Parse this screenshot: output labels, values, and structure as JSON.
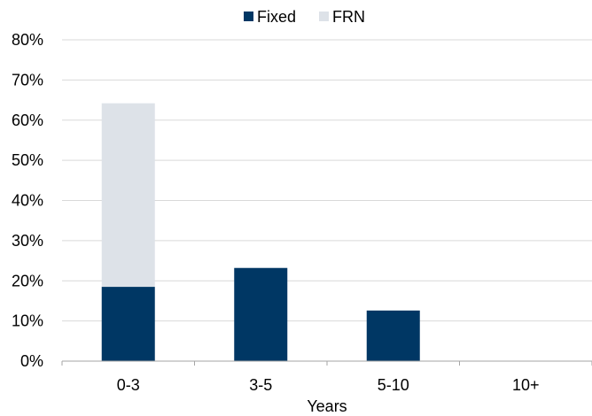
{
  "chart_data": {
    "type": "bar",
    "stacked": true,
    "categories": [
      "0-3",
      "3-5",
      "5-10",
      "10+"
    ],
    "series": [
      {
        "name": "Fixed",
        "values": [
          18.5,
          23.2,
          12.6,
          0
        ],
        "color": "#003764"
      },
      {
        "name": "FRN",
        "values": [
          45.7,
          0,
          0,
          0
        ],
        "color": "#dde2e8"
      }
    ],
    "xlabel": "Years",
    "ylabel": "",
    "ylim": [
      0,
      80
    ],
    "yticks": [
      "0%",
      "10%",
      "20%",
      "30%",
      "40%",
      "50%",
      "60%",
      "70%",
      "80%"
    ],
    "grid": true,
    "gridline_color": "#d9d9d9",
    "legend_position": "top-center"
  }
}
